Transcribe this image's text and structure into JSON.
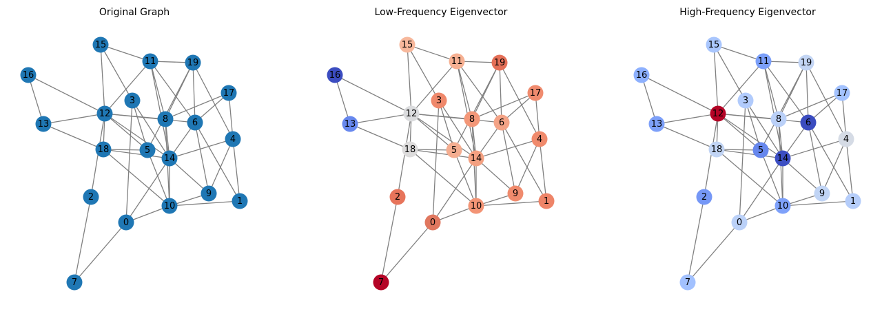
{
  "panels": [
    {
      "title": "Original Graph",
      "colors": [
        "#1f77b4",
        "#1f77b4",
        "#1f77b4",
        "#1f77b4",
        "#1f77b4",
        "#1f77b4",
        "#1f77b4",
        "#1f77b4",
        "#1f77b4",
        "#1f77b4",
        "#1f77b4",
        "#1f77b4",
        "#1f77b4",
        "#1f77b4",
        "#1f77b4",
        "#1f77b4",
        "#1f77b4",
        "#1f77b4",
        "#1f77b4",
        "#1f77b4"
      ]
    },
    {
      "title": "Low-Frequency Eigenvector",
      "colors": [
        "#e0775f",
        "#ee8468",
        "#e7745b",
        "#ef886b",
        "#f08a6c",
        "#f4ad90",
        "#f4a386",
        "#b40426",
        "#f39778",
        "#f08b6d",
        "#f39475",
        "#f6b092",
        "#dbdcde",
        "#6788ee",
        "#f3a081",
        "#f7b89c",
        "#3b4cc0",
        "#f08b6e",
        "#dddcdc",
        "#e57058"
      ]
    },
    {
      "title": "High-Frequency Eigenvector",
      "colors": [
        "#bbd1f8",
        "#b5cdfa",
        "#7597f6",
        "#b1cbfc",
        "#d5dbe5",
        "#6687ed",
        "#3b4cc0",
        "#a2c1ff",
        "#bad0f8",
        "#c0d4f5",
        "#7ea1fa",
        "#7b9ff9",
        "#b40426",
        "#7da0f9",
        "#3c4ec2",
        "#a9c6fd",
        "#8db0fe",
        "#a3c2fe",
        "#c1d4f4",
        "#c3d5f4"
      ]
    }
  ],
  "node_labels": [
    "0",
    "1",
    "2",
    "3",
    "4",
    "5",
    "6",
    "7",
    "8",
    "9",
    "10",
    "11",
    "12",
    "13",
    "14",
    "15",
    "16",
    "17",
    "18",
    "19"
  ]
}
